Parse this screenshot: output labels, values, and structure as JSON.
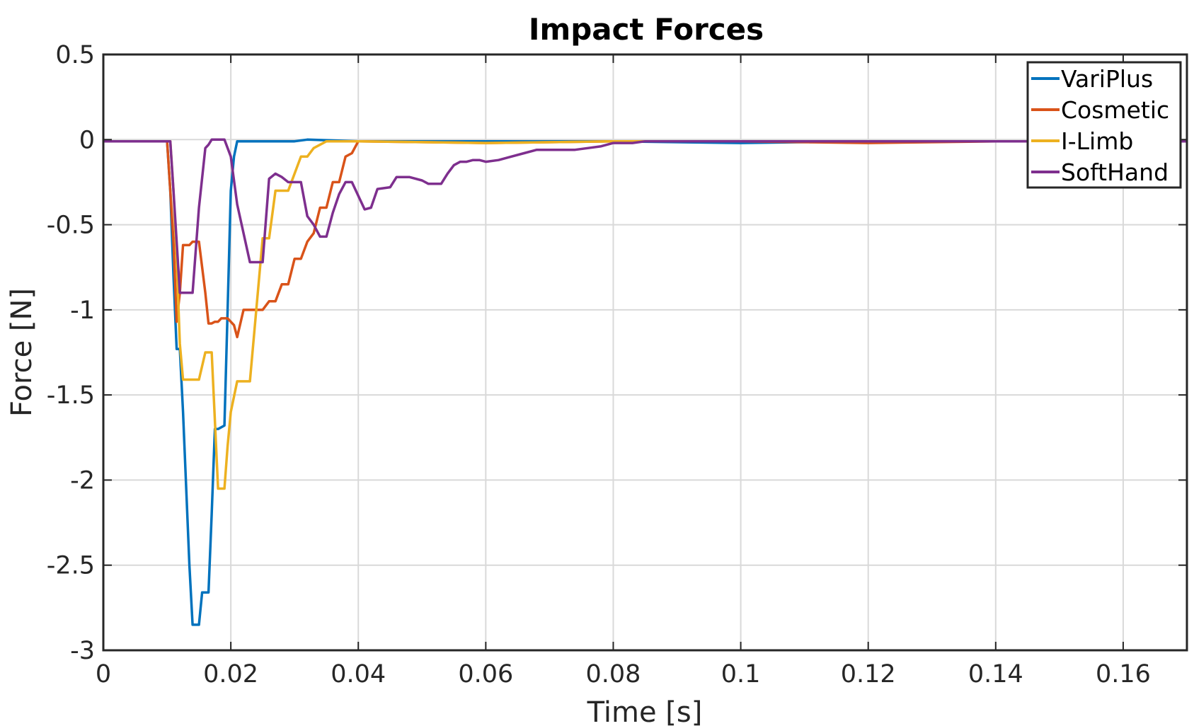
{
  "chart_data": {
    "type": "line",
    "title": "Impact Forces",
    "xlabel": "Time [s]",
    "ylabel": "Force [N]",
    "xlim": [
      0,
      0.17
    ],
    "ylim": [
      -3,
      0.5
    ],
    "xticks": [
      0,
      0.02,
      0.04,
      0.06,
      0.08,
      0.1,
      0.12,
      0.14,
      0.16
    ],
    "xtick_labels": [
      "0",
      "0.02",
      "0.04",
      "0.06",
      "0.08",
      "0.1",
      "0.12",
      "0.14",
      "0.16"
    ],
    "yticks": [
      0.5,
      0,
      -0.5,
      -1,
      -1.5,
      -2,
      -2.5,
      -3
    ],
    "ytick_labels": [
      "0.5",
      "0",
      "-0.5",
      "-1",
      "-1.5",
      "-2",
      "-2.5",
      "-3"
    ],
    "grid": true,
    "legend_position": "top-right",
    "series": [
      {
        "name": "VariPlus",
        "color": "#0072BD",
        "x": [
          0,
          0.01,
          0.0105,
          0.011,
          0.0115,
          0.012,
          0.0125,
          0.0135,
          0.014,
          0.015,
          0.0155,
          0.0165,
          0.017,
          0.0175,
          0.018,
          0.019,
          0.0195,
          0.02,
          0.0205,
          0.021,
          0.03,
          0.032,
          0.04,
          0.06,
          0.08,
          0.1,
          0.12,
          0.14,
          0.17
        ],
        "y": [
          -0.01,
          -0.01,
          -0.3,
          -0.8,
          -1.23,
          -1.23,
          -1.6,
          -2.5,
          -2.85,
          -2.85,
          -2.66,
          -2.66,
          -2.2,
          -1.7,
          -1.7,
          -1.68,
          -1.0,
          -0.3,
          -0.1,
          -0.01,
          -0.01,
          0.0,
          -0.01,
          -0.01,
          -0.01,
          -0.02,
          -0.01,
          -0.01,
          -0.01
        ]
      },
      {
        "name": "Cosmetic",
        "color": "#D95319",
        "x": [
          0,
          0.01,
          0.0105,
          0.011,
          0.0115,
          0.012,
          0.0125,
          0.0135,
          0.014,
          0.015,
          0.016,
          0.0165,
          0.017,
          0.0175,
          0.018,
          0.0185,
          0.019,
          0.0195,
          0.0205,
          0.021,
          0.022,
          0.025,
          0.026,
          0.027,
          0.028,
          0.029,
          0.03,
          0.031,
          0.032,
          0.033,
          0.034,
          0.035,
          0.036,
          0.037,
          0.038,
          0.039,
          0.04,
          0.06,
          0.08,
          0.1,
          0.12,
          0.14,
          0.17
        ],
        "y": [
          -0.01,
          -0.01,
          -0.3,
          -0.6,
          -1.07,
          -0.9,
          -0.62,
          -0.62,
          -0.6,
          -0.6,
          -0.9,
          -1.08,
          -1.08,
          -1.07,
          -1.07,
          -1.05,
          -1.05,
          -1.05,
          -1.09,
          -1.16,
          -1.0,
          -1.0,
          -0.95,
          -0.95,
          -0.85,
          -0.85,
          -0.7,
          -0.7,
          -0.6,
          -0.55,
          -0.4,
          -0.4,
          -0.25,
          -0.25,
          -0.1,
          -0.08,
          -0.01,
          -0.02,
          -0.01,
          -0.01,
          -0.02,
          -0.01,
          -0.01
        ]
      },
      {
        "name": "I-Limb",
        "color": "#EDB120",
        "x": [
          0,
          0.0105,
          0.011,
          0.0115,
          0.012,
          0.0125,
          0.013,
          0.015,
          0.016,
          0.017,
          0.018,
          0.0185,
          0.019,
          0.0195,
          0.02,
          0.021,
          0.023,
          0.025,
          0.026,
          0.027,
          0.028,
          0.029,
          0.031,
          0.032,
          0.033,
          0.035,
          0.04,
          0.06,
          0.08,
          0.1,
          0.12,
          0.14,
          0.17
        ],
        "y": [
          -0.01,
          -0.01,
          -0.3,
          -0.7,
          -1.2,
          -1.41,
          -1.41,
          -1.41,
          -1.25,
          -1.25,
          -2.05,
          -2.05,
          -2.05,
          -1.8,
          -1.6,
          -1.42,
          -1.42,
          -0.58,
          -0.58,
          -0.3,
          -0.3,
          -0.3,
          -0.1,
          -0.1,
          -0.05,
          -0.01,
          -0.01,
          -0.02,
          -0.01,
          -0.01,
          -0.01,
          -0.01,
          -0.01
        ]
      },
      {
        "name": "SoftHand",
        "color": "#7E2F8E",
        "x": [
          0,
          0.0105,
          0.011,
          0.0115,
          0.012,
          0.0125,
          0.013,
          0.014,
          0.015,
          0.016,
          0.0165,
          0.017,
          0.018,
          0.019,
          0.0195,
          0.02,
          0.021,
          0.022,
          0.023,
          0.024,
          0.025,
          0.026,
          0.027,
          0.028,
          0.029,
          0.0305,
          0.031,
          0.032,
          0.033,
          0.034,
          0.035,
          0.036,
          0.037,
          0.038,
          0.039,
          0.041,
          0.042,
          0.043,
          0.045,
          0.046,
          0.047,
          0.048,
          0.05,
          0.051,
          0.052,
          0.053,
          0.054,
          0.055,
          0.056,
          0.057,
          0.058,
          0.059,
          0.06,
          0.062,
          0.064,
          0.066,
          0.068,
          0.07,
          0.072,
          0.074,
          0.076,
          0.078,
          0.08,
          0.083,
          0.085,
          0.09,
          0.1,
          0.12,
          0.14,
          0.17
        ],
        "y": [
          -0.01,
          -0.01,
          -0.3,
          -0.6,
          -0.9,
          -0.9,
          -0.9,
          -0.9,
          -0.4,
          -0.05,
          -0.03,
          0.0,
          0.0,
          0.0,
          -0.05,
          -0.1,
          -0.38,
          -0.55,
          -0.72,
          -0.72,
          -0.72,
          -0.23,
          -0.2,
          -0.22,
          -0.25,
          -0.25,
          -0.25,
          -0.45,
          -0.5,
          -0.57,
          -0.57,
          -0.43,
          -0.32,
          -0.25,
          -0.25,
          -0.41,
          -0.4,
          -0.29,
          -0.28,
          -0.22,
          -0.22,
          -0.22,
          -0.24,
          -0.26,
          -0.26,
          -0.26,
          -0.2,
          -0.15,
          -0.13,
          -0.13,
          -0.12,
          -0.12,
          -0.13,
          -0.12,
          -0.1,
          -0.08,
          -0.06,
          -0.06,
          -0.06,
          -0.06,
          -0.05,
          -0.04,
          -0.02,
          -0.02,
          -0.01,
          -0.01,
          -0.01,
          -0.01,
          -0.01,
          -0.01
        ]
      }
    ]
  }
}
